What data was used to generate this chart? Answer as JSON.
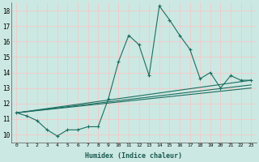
{
  "xlabel": "Humidex (Indice chaleur)",
  "xlim": [
    -0.5,
    23.5
  ],
  "ylim": [
    9.5,
    18.5
  ],
  "yticks": [
    10,
    11,
    12,
    13,
    14,
    15,
    16,
    17,
    18
  ],
  "xticks": [
    0,
    1,
    2,
    3,
    4,
    5,
    6,
    7,
    8,
    9,
    10,
    11,
    12,
    13,
    14,
    15,
    16,
    17,
    18,
    19,
    20,
    21,
    22,
    23
  ],
  "background_color": "#cce8e2",
  "grid_color": "#f5c8c8",
  "line_color": "#1a6e60",
  "line1_x": [
    0,
    1,
    2,
    3,
    4,
    5,
    6,
    7,
    8,
    9,
    10,
    11,
    12,
    13,
    14,
    15,
    16,
    17,
    18,
    19,
    20,
    21,
    22,
    23
  ],
  "line1_y": [
    11.4,
    11.2,
    10.9,
    10.3,
    9.9,
    10.3,
    10.3,
    10.5,
    10.5,
    12.3,
    14.7,
    16.4,
    15.8,
    13.8,
    18.3,
    17.4,
    16.4,
    15.5,
    13.6,
    14.0,
    13.0,
    13.8,
    13.5,
    13.5
  ],
  "line2_x": [
    0,
    23
  ],
  "line2_y": [
    11.4,
    13.5
  ],
  "line3_x": [
    0,
    23
  ],
  "line3_y": [
    11.4,
    13.2
  ],
  "line4_x": [
    0,
    23
  ],
  "line4_y": [
    11.4,
    13.0
  ]
}
